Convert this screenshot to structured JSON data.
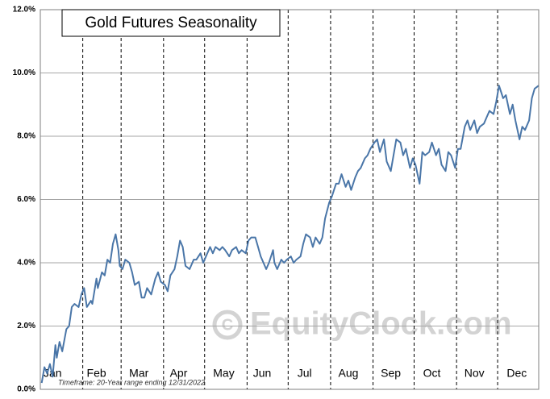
{
  "chart_data": {
    "type": "line",
    "title": "Gold Futures Seasonality",
    "footnote": "Timeframe: 20-Year range ending 12/31/2022",
    "watermark": "EquityClock.com",
    "xlim": [
      1,
      365
    ],
    "xticks": [
      {
        "value": 10,
        "label": "Jan"
      },
      {
        "value": 42,
        "label": "Feb"
      },
      {
        "value": 73,
        "label": "Mar"
      },
      {
        "value": 102,
        "label": "Apr"
      },
      {
        "value": 135,
        "label": "May"
      },
      {
        "value": 163,
        "label": "Jun"
      },
      {
        "value": 194,
        "label": "Jul"
      },
      {
        "value": 226,
        "label": "Aug"
      },
      {
        "value": 257,
        "label": "Sep"
      },
      {
        "value": 287,
        "label": "Oct"
      },
      {
        "value": 318,
        "label": "Nov"
      },
      {
        "value": 349,
        "label": "Dec"
      }
    ],
    "xgrid": [
      32,
      60,
      91,
      121,
      152,
      182,
      213,
      244,
      274,
      305,
      335
    ],
    "ylim": [
      0,
      12
    ],
    "yticks": [
      {
        "value": 0,
        "label": "0.0%"
      },
      {
        "value": 2,
        "label": "2.0%"
      },
      {
        "value": 4,
        "label": "4.0%"
      },
      {
        "value": 6,
        "label": "6.0%"
      },
      {
        "value": 8,
        "label": "8.0%"
      },
      {
        "value": 10,
        "label": "10.0%"
      },
      {
        "value": 12,
        "label": "12.0%"
      }
    ],
    "grid": true,
    "x": [
      2,
      4,
      6,
      8,
      10,
      12,
      13,
      15,
      17,
      20,
      22,
      24,
      26,
      29,
      31,
      33,
      35,
      38,
      39,
      42,
      43,
      46,
      48,
      50,
      52,
      54,
      56,
      58,
      59,
      61,
      63,
      66,
      68,
      70,
      73,
      75,
      77,
      79,
      82,
      85,
      87,
      89,
      92,
      94,
      96,
      99,
      101,
      103,
      105,
      107,
      110,
      113,
      115,
      118,
      120,
      122,
      125,
      127,
      129,
      132,
      134,
      136,
      139,
      141,
      144,
      146,
      148,
      151,
      153,
      155,
      158,
      160,
      162,
      164,
      166,
      168,
      171,
      172,
      174,
      177,
      179,
      181,
      184,
      186,
      188,
      191,
      193,
      195,
      198,
      200,
      202,
      205,
      207,
      209,
      212,
      214,
      217,
      219,
      221,
      224,
      226,
      228,
      231,
      233,
      235,
      238,
      240,
      242,
      245,
      247,
      249,
      252,
      254,
      257,
      259,
      261,
      264,
      266,
      268,
      271,
      273,
      275,
      278,
      280,
      282,
      285,
      287,
      290,
      292,
      294,
      297,
      299,
      301,
      304,
      306,
      308,
      311,
      313,
      315,
      318,
      320,
      322,
      325,
      327,
      329,
      332,
      334,
      336,
      339,
      341,
      344,
      346,
      348,
      351,
      353,
      355,
      358,
      360,
      362,
      365
    ],
    "series": [
      {
        "name": "Gold Futures",
        "color": "#4a76a8",
        "values": [
          0.2,
          0.7,
          0.5,
          0.8,
          0.4,
          1.4,
          1.0,
          1.5,
          1.2,
          1.9,
          2.0,
          2.6,
          2.7,
          2.6,
          3.0,
          3.2,
          2.6,
          2.8,
          2.7,
          3.5,
          3.2,
          3.7,
          3.6,
          4.1,
          4.0,
          4.6,
          4.9,
          4.4,
          3.9,
          3.8,
          4.1,
          4.0,
          3.7,
          3.3,
          3.4,
          2.9,
          2.9,
          3.2,
          3.0,
          3.5,
          3.7,
          3.4,
          3.3,
          3.1,
          3.6,
          3.8,
          4.2,
          4.7,
          4.5,
          3.9,
          3.8,
          4.1,
          4.1,
          4.3,
          4.0,
          4.2,
          4.5,
          4.3,
          4.5,
          4.4,
          4.5,
          4.4,
          4.2,
          4.4,
          4.5,
          4.3,
          4.4,
          4.3,
          4.7,
          4.8,
          4.8,
          4.5,
          4.2,
          4.0,
          3.8,
          4.0,
          4.4,
          4.0,
          3.8,
          4.1,
          4.0,
          4.1,
          4.2,
          4.0,
          4.1,
          4.2,
          4.6,
          4.9,
          4.8,
          4.5,
          4.8,
          4.6,
          4.8,
          5.4,
          5.9,
          6.1,
          6.5,
          6.5,
          6.8,
          6.4,
          6.6,
          6.3,
          6.7,
          6.9,
          7.0,
          7.3,
          7.4,
          7.6,
          7.8,
          7.9,
          7.5,
          7.9,
          7.2,
          6.9,
          7.4,
          7.9,
          7.8,
          7.4,
          7.6,
          7.0,
          7.3,
          7.1,
          6.5,
          7.5,
          7.4,
          7.5,
          7.8,
          7.4,
          7.6,
          7.1,
          6.9,
          7.5,
          7.4,
          7.0,
          7.6,
          7.6,
          8.3,
          8.5,
          8.2,
          8.5,
          8.1,
          8.3,
          8.4,
          8.6,
          8.8,
          8.7,
          9.1,
          9.6,
          9.2,
          9.3,
          8.7,
          9.0,
          8.5,
          7.9,
          8.3,
          8.2,
          8.5,
          9.2,
          9.5,
          9.6
        ]
      }
    ]
  }
}
